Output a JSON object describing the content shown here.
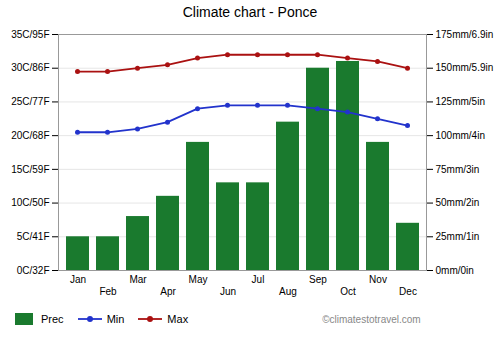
{
  "chart_data": {
    "type": "bar",
    "title": "Climate chart - Ponce",
    "categories": [
      "Jan",
      "Feb",
      "Mar",
      "Apr",
      "May",
      "Jun",
      "Jul",
      "Aug",
      "Sep",
      "Oct",
      "Nov",
      "Dec"
    ],
    "series": [
      {
        "name": "Prec",
        "type": "bar",
        "axis": "y2",
        "color": "#1a7a2e",
        "values": [
          25,
          25,
          40,
          55,
          95,
          65,
          65,
          110,
          150,
          155,
          95,
          35
        ]
      },
      {
        "name": "Min",
        "type": "line",
        "color": "#2233cc",
        "marker": "circle",
        "values": [
          20.5,
          20.5,
          21,
          22,
          24,
          24.5,
          24.5,
          24.5,
          24,
          23.5,
          22.5,
          21.5
        ]
      },
      {
        "name": "Max",
        "type": "line",
        "color": "#aa1111",
        "marker": "circle",
        "values": [
          29.5,
          29.5,
          30,
          30.5,
          31.5,
          32,
          32,
          32,
          32,
          31.5,
          31,
          30
        ]
      }
    ],
    "ylim": [
      0,
      35
    ],
    "yticks": [
      {
        "value": 0,
        "label": "0C/32F"
      },
      {
        "value": 5,
        "label": "5C/41F"
      },
      {
        "value": 10,
        "label": "10C/50F"
      },
      {
        "value": 15,
        "label": "15C/59F"
      },
      {
        "value": 20,
        "label": "20C/68F"
      },
      {
        "value": 25,
        "label": "25C/77F"
      },
      {
        "value": 30,
        "label": "30C/86F"
      },
      {
        "value": 35,
        "label": "35C/95F"
      }
    ],
    "y2lim": [
      0,
      175
    ],
    "y2ticks": [
      {
        "value": 0,
        "label": "0mm/0in"
      },
      {
        "value": 25,
        "label": "25mm/1in"
      },
      {
        "value": 50,
        "label": "50mm/2in"
      },
      {
        "value": 75,
        "label": "75mm/3in"
      },
      {
        "value": 100,
        "label": "100mm/4in"
      },
      {
        "value": 125,
        "label": "125mm/5in"
      },
      {
        "value": 150,
        "label": "150mm/5.9in"
      },
      {
        "value": 175,
        "label": "175mm/6.9in"
      }
    ],
    "grid": true,
    "legend": "bottom",
    "annotations": [
      "©climatestotravel.com"
    ]
  }
}
